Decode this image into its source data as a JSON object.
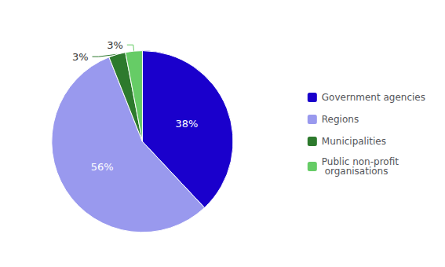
{
  "chart_data": {
    "type": "pie",
    "categories": [
      "Government agencies",
      "Regions",
      "Municipalities",
      "Public non-profit\n organisations"
    ],
    "values": [
      38,
      56,
      3,
      3
    ],
    "value_labels": [
      "38%",
      "56%",
      "3%",
      "3%"
    ],
    "colors": [
      "#1a00cc",
      "#9999ee",
      "#2d7a2d",
      "#66cc66"
    ],
    "data_labels": true,
    "legend": "right"
  }
}
